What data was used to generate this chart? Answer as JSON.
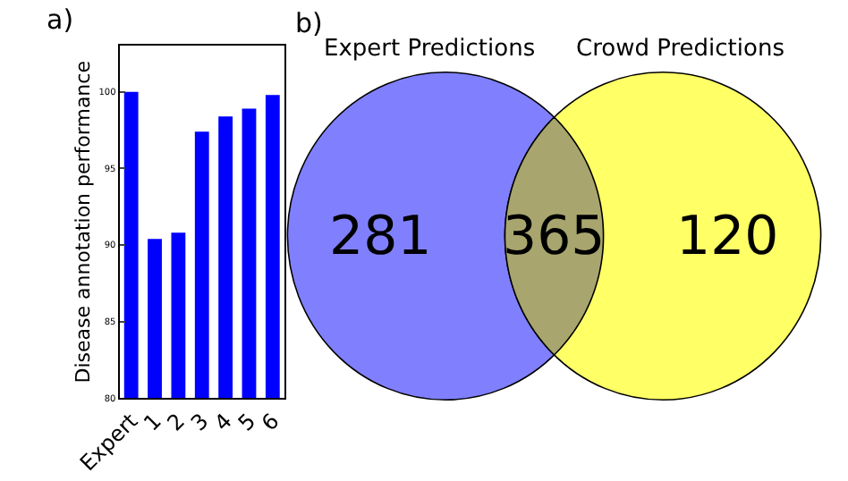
{
  "chart_data": [
    {
      "type": "bar",
      "title": "a)",
      "ylabel": "Disease annotation performance",
      "categories": [
        "Expert",
        "1",
        "2",
        "3",
        "4",
        "5",
        "6"
      ],
      "values": [
        100,
        90.4,
        90.8,
        97.4,
        98.4,
        98.9,
        99.8
      ],
      "color": "#0000ff",
      "ylim": [
        80,
        103
      ],
      "yticks": [
        80,
        85,
        90,
        95,
        100
      ]
    },
    {
      "type": "other",
      "title": "b)",
      "categories": [
        "Expert Predictions",
        null,
        "Crowd Predictions"
      ],
      "values": [
        281,
        365,
        120
      ],
      "colors": [
        "#8080ff",
        "#a8a66e",
        "#ffff66"
      ],
      "data_labels": true
    }
  ]
}
